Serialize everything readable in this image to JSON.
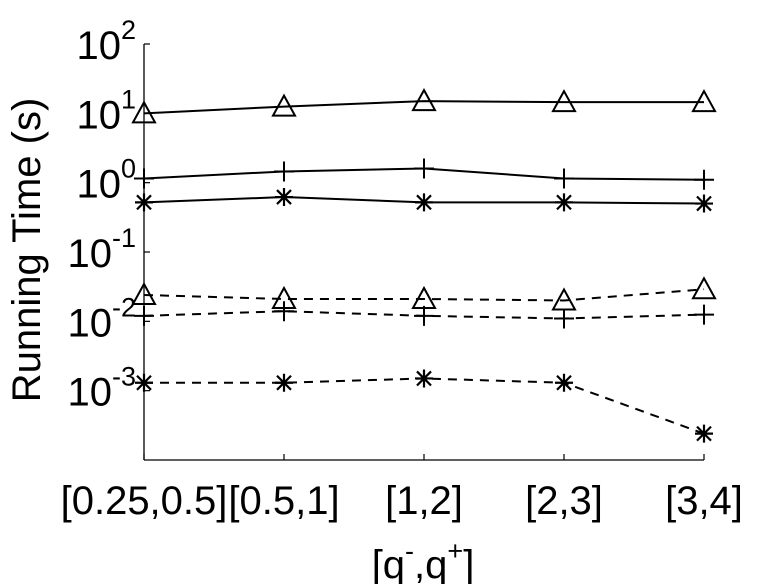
{
  "chart_data": {
    "type": "line",
    "xlabel": "[q⁻,q⁺]",
    "xlabel_parts": {
      "open": "[q",
      "minus": "-",
      "comma": ",q",
      "plus": "+",
      "close": "]"
    },
    "ylabel": "Running Time (s)",
    "categories": [
      "[0.25,0.5]",
      "[0.5,1]",
      "[1,2]",
      "[2,3]",
      "[3,4]"
    ],
    "y_scale": "log",
    "ylim": [
      0.0001,
      100
    ],
    "y_ticks": [
      {
        "base": "10",
        "exp": "2"
      },
      {
        "base": "10",
        "exp": "1"
      },
      {
        "base": "10",
        "exp": "0"
      },
      {
        "base": "10",
        "exp": "-1"
      },
      {
        "base": "10",
        "exp": "-2"
      },
      {
        "base": "10",
        "exp": "-3"
      }
    ],
    "grid": false,
    "series": [
      {
        "marker": "triangle",
        "line_style": "solid",
        "values": [
          10.0,
          12.5,
          15.0,
          14.5,
          14.5
        ]
      },
      {
        "marker": "plus",
        "line_style": "solid",
        "values": [
          1.15,
          1.45,
          1.6,
          1.15,
          1.1
        ]
      },
      {
        "marker": "asterisk",
        "line_style": "solid",
        "values": [
          0.52,
          0.62,
          0.52,
          0.52,
          0.5
        ]
      },
      {
        "marker": "triangle",
        "line_style": "dashed",
        "values": [
          0.024,
          0.021,
          0.021,
          0.02,
          0.029
        ]
      },
      {
        "marker": "plus",
        "line_style": "dashed",
        "values": [
          0.012,
          0.014,
          0.012,
          0.011,
          0.0125
        ]
      },
      {
        "marker": "asterisk",
        "line_style": "dashed",
        "values": [
          0.0013,
          0.0013,
          0.0015,
          0.0013,
          0.00024
        ]
      }
    ]
  }
}
